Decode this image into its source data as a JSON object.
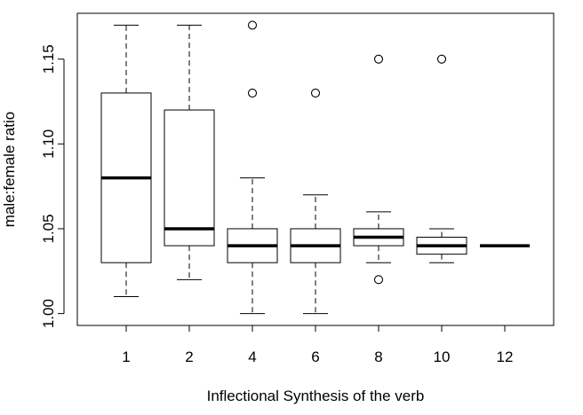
{
  "chart_data": {
    "type": "boxplot",
    "title": "",
    "xlabel": "Inflectional Synthesis of the verb",
    "ylabel": "male:female ratio",
    "ylim": [
      0.993,
      1.177
    ],
    "yticks": [
      1.0,
      1.05,
      1.1,
      1.15
    ],
    "ytick_labels": [
      "1.00",
      "1.05",
      "1.10",
      "1.15"
    ],
    "categories": [
      "1",
      "2",
      "4",
      "6",
      "8",
      "10",
      "12"
    ],
    "boxes": [
      {
        "category": "1",
        "whisker_low": 1.01,
        "q1": 1.03,
        "median": 1.08,
        "q3": 1.13,
        "whisker_high": 1.17,
        "outliers": []
      },
      {
        "category": "2",
        "whisker_low": 1.02,
        "q1": 1.04,
        "median": 1.05,
        "q3": 1.12,
        "whisker_high": 1.17,
        "outliers": []
      },
      {
        "category": "4",
        "whisker_low": 1.0,
        "q1": 1.03,
        "median": 1.04,
        "q3": 1.05,
        "whisker_high": 1.08,
        "outliers": [
          1.13,
          1.17
        ]
      },
      {
        "category": "6",
        "whisker_low": 1.0,
        "q1": 1.03,
        "median": 1.04,
        "q3": 1.05,
        "whisker_high": 1.07,
        "outliers": [
          1.13
        ]
      },
      {
        "category": "8",
        "whisker_low": 1.03,
        "q1": 1.04,
        "median": 1.045,
        "q3": 1.05,
        "whisker_high": 1.06,
        "outliers": [
          1.02,
          1.15
        ]
      },
      {
        "category": "10",
        "whisker_low": 1.03,
        "q1": 1.035,
        "median": 1.04,
        "q3": 1.045,
        "whisker_high": 1.05,
        "outliers": [
          1.15
        ]
      },
      {
        "category": "12",
        "whisker_low": 1.04,
        "q1": 1.04,
        "median": 1.04,
        "q3": 1.04,
        "whisker_high": 1.04,
        "outliers": []
      }
    ],
    "grid": false,
    "legend": "none"
  }
}
